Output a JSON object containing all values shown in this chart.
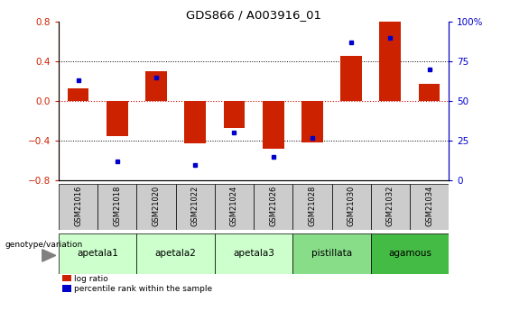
{
  "title": "GDS866 / A003916_01",
  "samples": [
    "GSM21016",
    "GSM21018",
    "GSM21020",
    "GSM21022",
    "GSM21024",
    "GSM21026",
    "GSM21028",
    "GSM21030",
    "GSM21032",
    "GSM21034"
  ],
  "log_ratios": [
    0.13,
    -0.35,
    0.3,
    -0.43,
    -0.27,
    -0.48,
    -0.42,
    0.46,
    0.8,
    0.17
  ],
  "percentile_ranks": [
    63,
    12,
    65,
    10,
    30,
    15,
    27,
    87,
    90,
    70
  ],
  "groups": [
    {
      "label": "apetala1",
      "indices": [
        0,
        1
      ],
      "color": "#ccffcc"
    },
    {
      "label": "apetala2",
      "indices": [
        2,
        3
      ],
      "color": "#ccffcc"
    },
    {
      "label": "apetala3",
      "indices": [
        4,
        5
      ],
      "color": "#ccffcc"
    },
    {
      "label": "pistillata",
      "indices": [
        6,
        7
      ],
      "color": "#88dd88"
    },
    {
      "label": "agamous",
      "indices": [
        8,
        9
      ],
      "color": "#44bb44"
    }
  ],
  "ylim_left": [
    -0.8,
    0.8
  ],
  "ylim_right": [
    0,
    100
  ],
  "bar_color": "#cc2200",
  "dot_color": "#0000cc",
  "bar_width": 0.55,
  "sample_box_color": "#cccccc",
  "fig_bg": "#ffffff"
}
